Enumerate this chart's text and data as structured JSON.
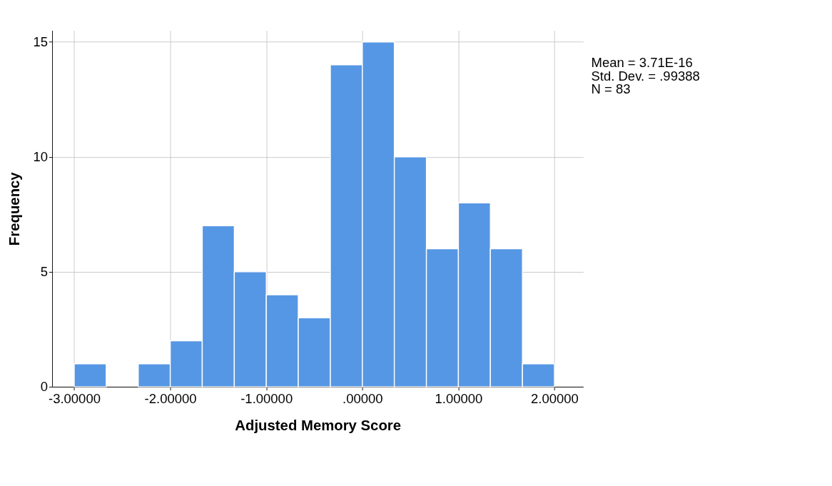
{
  "chart_data": {
    "type": "histogram",
    "xlabel": "Adjusted Memory Score",
    "ylabel": "Frequency",
    "bins": [
      -3,
      -2.667,
      -2.333,
      -2,
      -1.667,
      -1.333,
      -1,
      -0.667,
      -0.333,
      0,
      0.333,
      0.667,
      1,
      1.333,
      1.667,
      2
    ],
    "values": [
      1,
      0,
      1,
      2,
      7,
      5,
      4,
      3,
      14,
      15,
      10,
      6,
      8,
      6,
      1
    ],
    "color": "#5597e4",
    "xlim": [
      -3.23,
      2.3
    ],
    "ylim": [
      0,
      15.5
    ],
    "xticks": [
      {
        "value": -3,
        "label": "-3.00000"
      },
      {
        "value": -2,
        "label": "-2.00000"
      },
      {
        "value": -1,
        "label": "-1.00000"
      },
      {
        "value": 0,
        "label": ".00000"
      },
      {
        "value": 1,
        "label": "1.00000"
      },
      {
        "value": 2,
        "label": "2.00000"
      }
    ],
    "yticks": [
      0,
      5,
      10,
      15
    ],
    "grid": true,
    "annotations": [
      "Mean = 3.71E-16",
      "Std. Dev. = .99388",
      "N = 83"
    ]
  }
}
